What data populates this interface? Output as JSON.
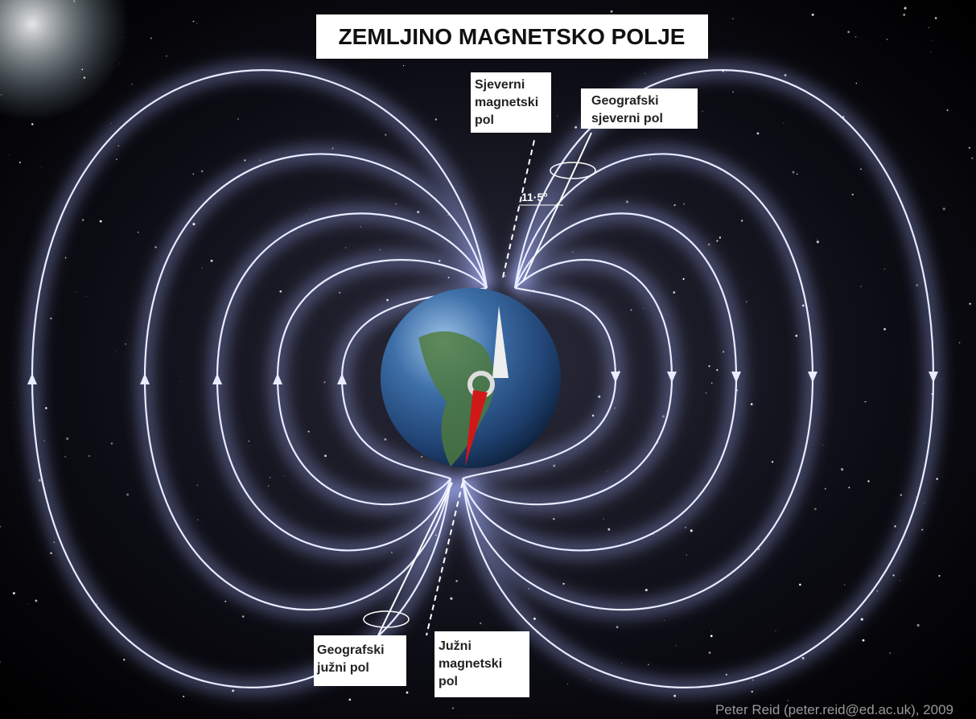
{
  "title": "ZEMLJINO MAGNETSKO POLJE",
  "labels": {
    "north_magnetic": [
      "Sjeverni",
      "magnetski",
      "pol"
    ],
    "north_geographic": [
      "Geografski",
      "sjeverni pol"
    ],
    "south_geographic": [
      "Geografski",
      "južni pol"
    ],
    "south_magnetic": [
      "Južni",
      "magnetski",
      "pol"
    ],
    "angle": "11·5°"
  },
  "credit": "Peter Reid (peter.reid@ed.ac.uk), 2009"
}
